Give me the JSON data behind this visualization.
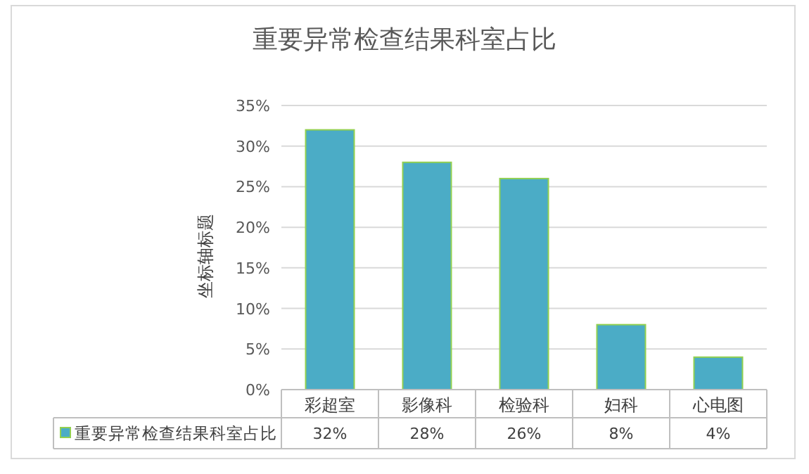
{
  "chart_data": {
    "type": "bar",
    "title": "重要异常检查结果科室占比",
    "ylabel": "坐标轴标题",
    "categories": [
      "彩超室",
      "影像科",
      "检验科",
      "妇科",
      "心电图"
    ],
    "series": [
      {
        "name": "重要异常检查结果科室占比",
        "color": "#4bacc6",
        "values": [
          32,
          28,
          26,
          8,
          4
        ],
        "value_labels": [
          "32%",
          "28%",
          "26%",
          "8%",
          "4%"
        ]
      }
    ],
    "ylim": [
      0,
      35
    ],
    "yticks": [
      {
        "value": 0,
        "label": "0%"
      },
      {
        "value": 5,
        "label": "5%"
      },
      {
        "value": 10,
        "label": "10%"
      },
      {
        "value": 15,
        "label": "15%"
      },
      {
        "value": 20,
        "label": "20%"
      },
      {
        "value": 25,
        "label": "25%"
      },
      {
        "value": 30,
        "label": "30%"
      },
      {
        "value": 35,
        "label": "35%"
      }
    ],
    "grid": "y",
    "legend": "bottom"
  }
}
